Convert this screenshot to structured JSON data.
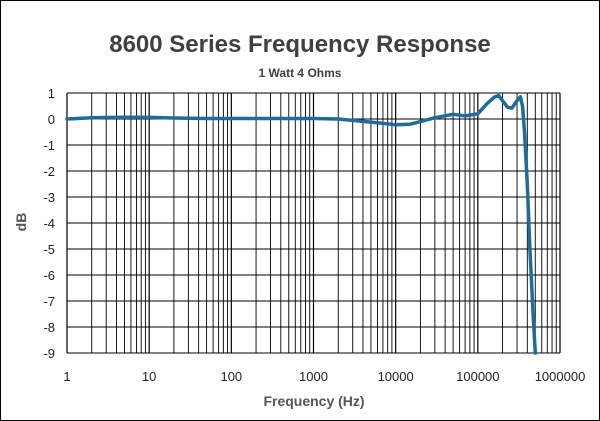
{
  "chart_data": {
    "type": "line",
    "title": "8600 Series Frequency Response",
    "subtitle": "1 Watt 4 Ohms",
    "xlabel": "Frequency (Hz)",
    "ylabel": "dB",
    "x_scale": "log",
    "xlim": [
      1,
      1000000
    ],
    "ylim": [
      -9,
      1
    ],
    "grid": true,
    "x_tick_labels": [
      "1",
      "10",
      "100",
      "1000",
      "10000",
      "100000",
      "1000000"
    ],
    "y_tick_labels": [
      "1",
      "0",
      "-1",
      "-2",
      "-3",
      "-4",
      "-5",
      "-6",
      "-7",
      "-8",
      "-9"
    ],
    "series": [
      {
        "color": "#1f6b9a",
        "x": [
          1,
          2,
          5,
          10,
          20,
          50,
          100,
          200,
          500,
          1000,
          2000,
          5000,
          10000,
          15000,
          20000,
          30000,
          50000,
          70000,
          100000,
          130000,
          160000,
          180000,
          200000,
          230000,
          260000,
          300000,
          330000,
          350000,
          370000,
          400000,
          430000,
          470000,
          500000
        ],
        "y": [
          0.0,
          0.05,
          0.07,
          0.06,
          0.04,
          0.02,
          0.02,
          0.02,
          0.02,
          0.02,
          0.0,
          -0.12,
          -0.22,
          -0.2,
          -0.1,
          0.05,
          0.18,
          0.12,
          0.2,
          0.6,
          0.85,
          0.9,
          0.7,
          0.45,
          0.42,
          0.7,
          0.85,
          0.5,
          -0.5,
          -2.5,
          -5.0,
          -7.5,
          -9.0
        ]
      }
    ]
  }
}
